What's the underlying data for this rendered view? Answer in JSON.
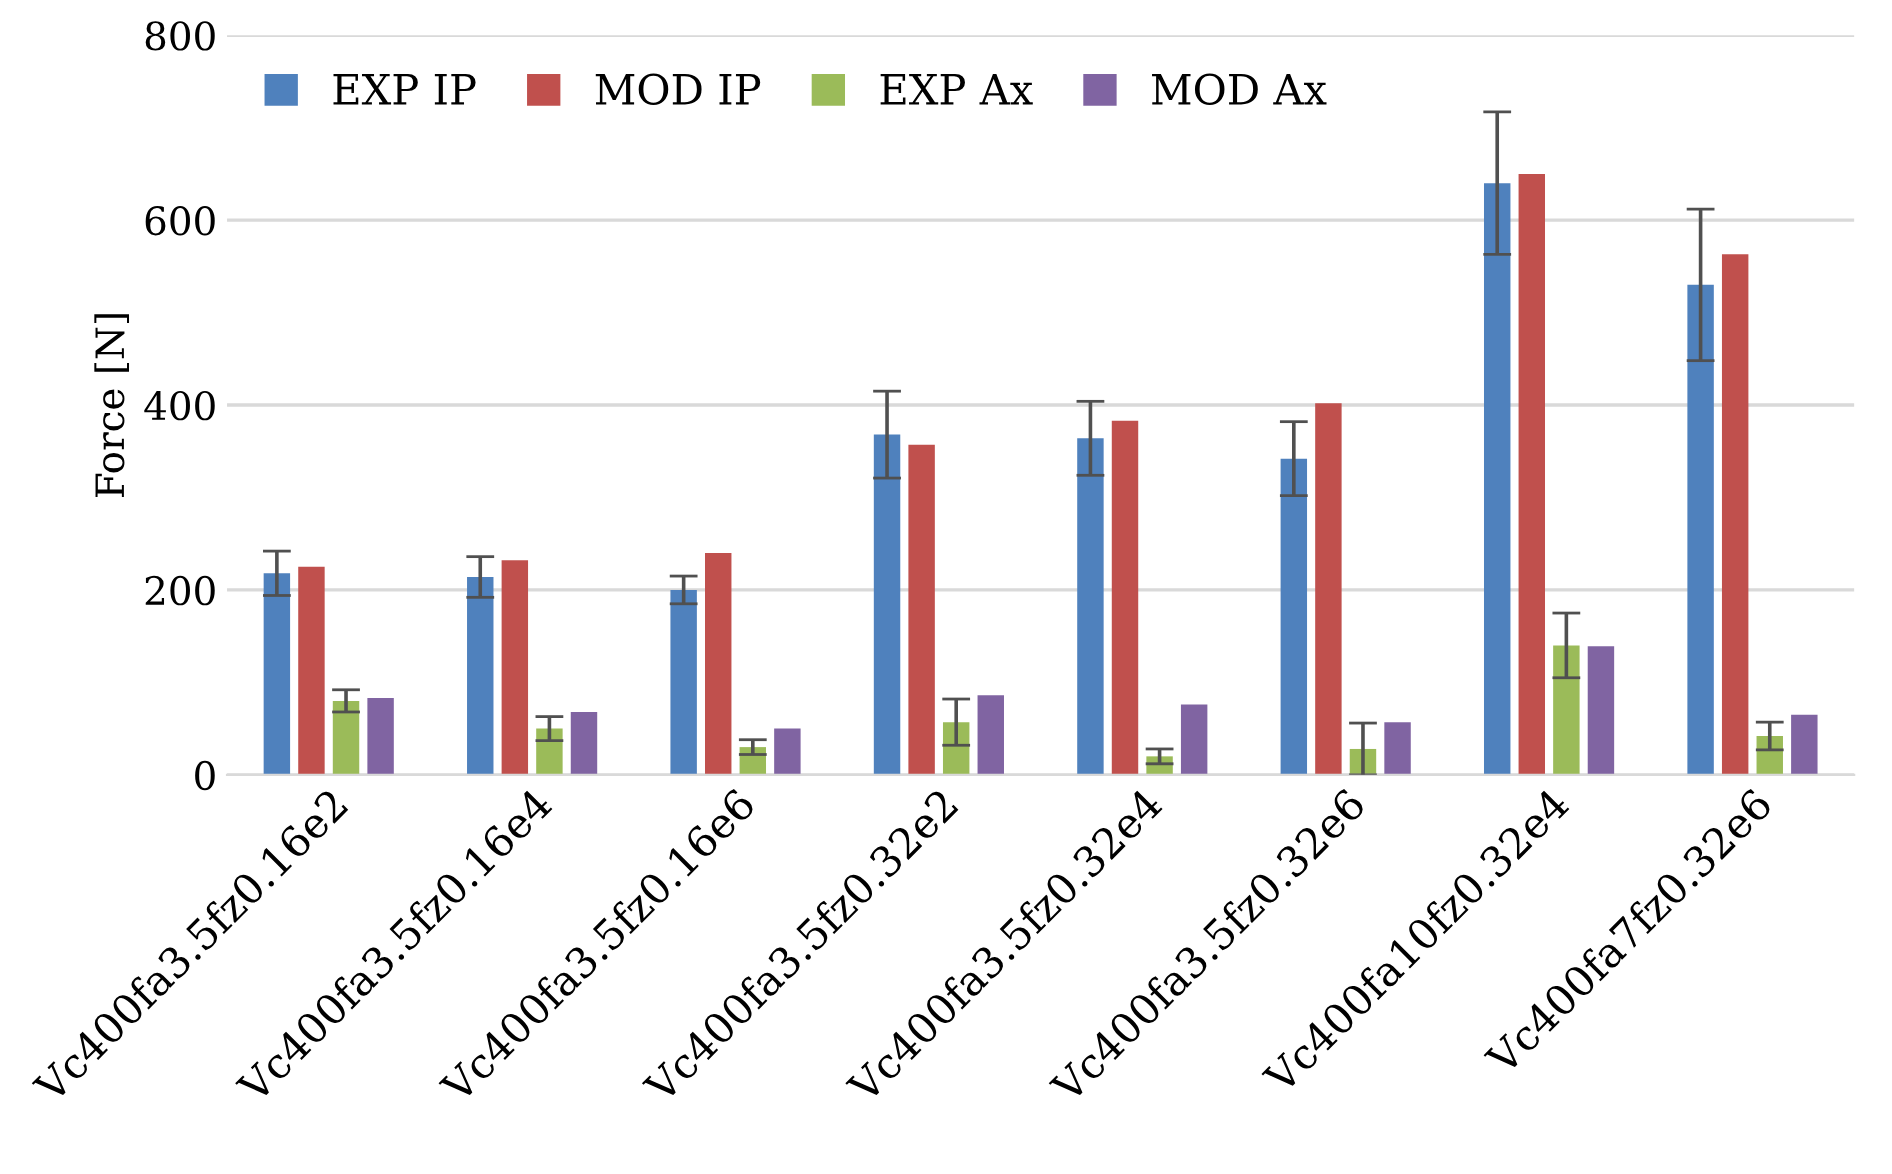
{
  "chart_data": {
    "type": "bar",
    "ylabel": "Force [N]",
    "categories": [
      "Vc400fa3.5fz0.16e2",
      "Vc400fa3.5fz0.16e4",
      "Vc400fa3.5fz0.16e6",
      "Vc400fa3.5fz0.32e2",
      "Vc400fa3.5fz0.32e4",
      "Vc400fa3.5fz0.32e6",
      "Vc400fa10fz0.32e4",
      "Vc400fa7fz0.32e6"
    ],
    "series": [
      {
        "name": "EXP IP",
        "color": "#4f81bd",
        "values": [
          218,
          214,
          200,
          368,
          364,
          342,
          640,
          530
        ],
        "errors": [
          24,
          22,
          15,
          47,
          40,
          40,
          77,
          82
        ]
      },
      {
        "name": "MOD IP",
        "color": "#c0504d",
        "values": [
          225,
          232,
          240,
          357,
          383,
          402,
          650,
          563
        ]
      },
      {
        "name": "EXP Ax",
        "color": "#9bbb59",
        "values": [
          80,
          50,
          30,
          57,
          20,
          28,
          140,
          42
        ],
        "errors": [
          12,
          13,
          8,
          25,
          8,
          28,
          35,
          15
        ]
      },
      {
        "name": "MOD Ax",
        "color": "#8064a2",
        "values": [
          83,
          68,
          50,
          86,
          76,
          57,
          139,
          65
        ]
      }
    ],
    "ylim": [
      0,
      800
    ],
    "yticks": [
      0,
      200,
      400,
      600,
      800
    ],
    "grid": "y",
    "legend": "top left"
  }
}
